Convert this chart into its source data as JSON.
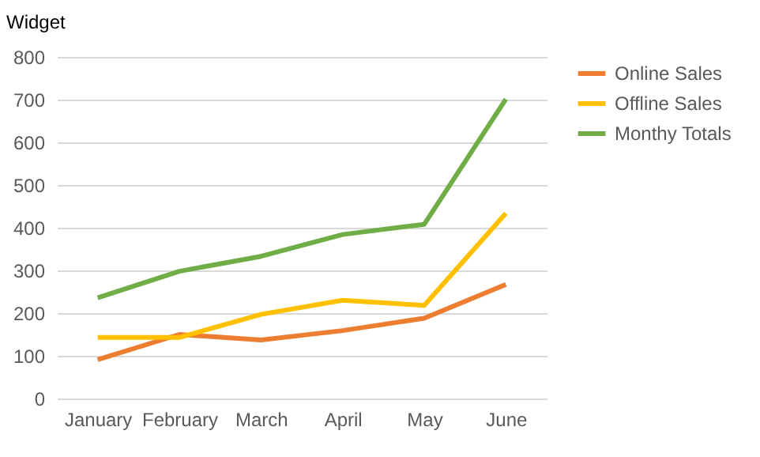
{
  "chart_data": {
    "type": "line",
    "categories": [
      "January",
      "February",
      "March",
      "April",
      "May",
      "June"
    ],
    "series": [
      {
        "name": "Online Sales",
        "color": "#ed7d31",
        "values": [
          91,
          150,
          137,
          159,
          188,
          267
        ]
      },
      {
        "name": "Offline Sales",
        "color": "#ffc000",
        "values": [
          143,
          143,
          197,
          230,
          218,
          434
        ]
      },
      {
        "name": "Monthy Totals",
        "color": "#70ad47",
        "values": [
          236,
          298,
          333,
          384,
          408,
          701
        ]
      }
    ],
    "ylim": [
      0,
      800
    ],
    "yticks": [
      0,
      100,
      200,
      300,
      400,
      500,
      600,
      700,
      800
    ],
    "grid": "y",
    "legend": "right",
    "marker": "none",
    "line_style": "solid",
    "annotations": [
      "Widget"
    ]
  }
}
